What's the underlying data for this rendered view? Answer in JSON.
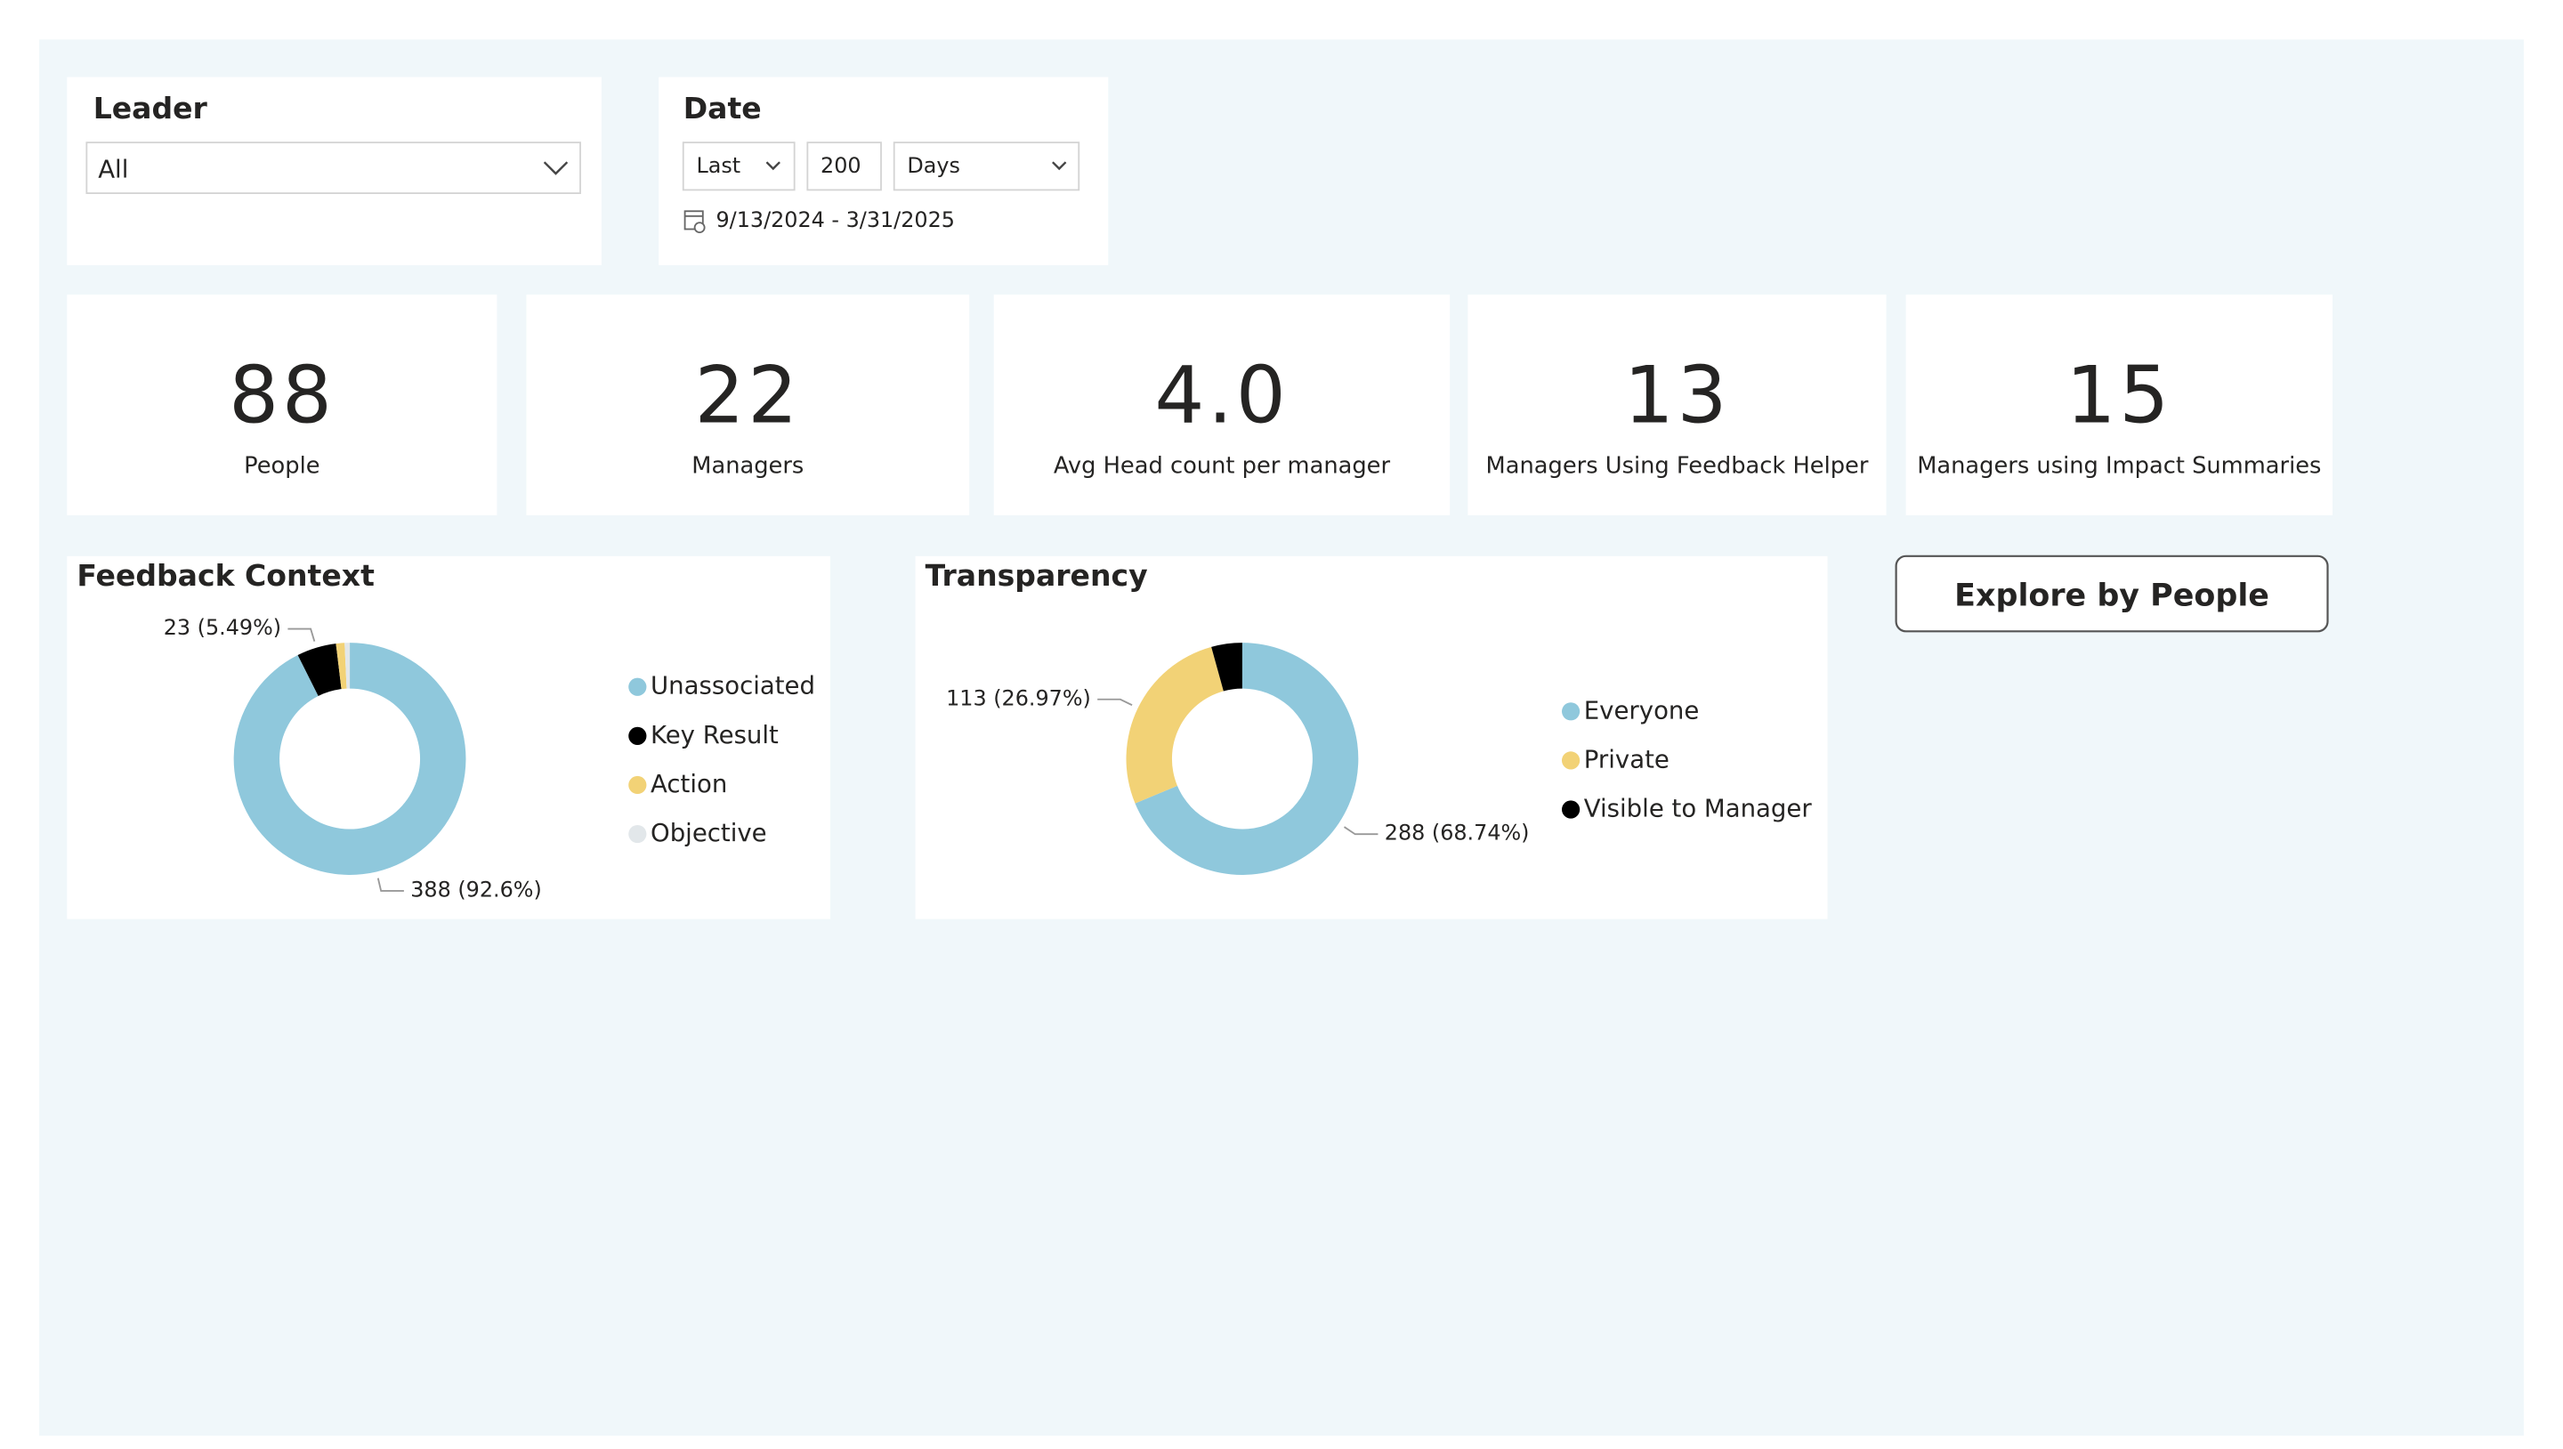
{
  "filters": {
    "leader": {
      "title": "Leader",
      "value": "All"
    },
    "date": {
      "title": "Date",
      "mode": "Last",
      "count": 200,
      "unit": "Days",
      "range": "9/13/2024 - 3/31/2025"
    }
  },
  "kpis": [
    {
      "value": 88,
      "label": "People"
    },
    {
      "value": 22,
      "label": "Managers"
    },
    {
      "value": 4.0,
      "value_label": "4.0",
      "label": "Avg Head count per manager"
    },
    {
      "value": 13,
      "label": "Managers Using Feedback Helper"
    },
    {
      "value": 15,
      "label": "Managers using Impact Summaries"
    }
  ],
  "charts": [
    {
      "type": "donut",
      "title": "Feedback Context",
      "categories": [
        "Unassociated",
        "Key Result",
        "Action",
        "Objective"
      ],
      "values": [
        388,
        23,
        5,
        3
      ],
      "value_labels": [
        "388 (92.6%)",
        "23 (5.49%)",
        null,
        null
      ],
      "colors": [
        "#8fc8dc",
        "#000000",
        "#f2d276",
        "#e2e7ea"
      ]
    },
    {
      "type": "donut",
      "title": "Transparency",
      "categories": [
        "Everyone",
        "Private",
        "Visible to Manager"
      ],
      "values": [
        288,
        113,
        18
      ],
      "value_labels": [
        "288 (68.74%)",
        "113 (26.97%)",
        null
      ],
      "colors": [
        "#8fc8dc",
        "#f2d276",
        "#000000"
      ]
    }
  ],
  "button": {
    "label": "Explore by People"
  }
}
